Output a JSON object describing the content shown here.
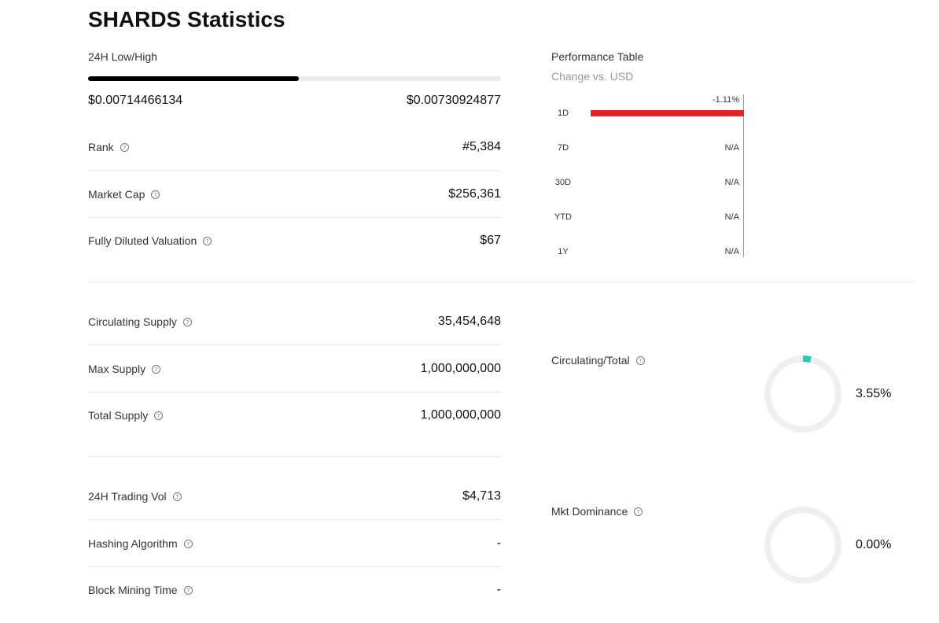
{
  "title": "SHARDS Statistics",
  "low_high": {
    "label": "24H Low/High",
    "low": "$0.00714466134",
    "high": "$0.00730924877",
    "fill_fraction": 0.51
  },
  "stats_group1": [
    {
      "label": "Rank",
      "value": "#5,384"
    },
    {
      "label": "Market Cap",
      "value": "$256,361"
    },
    {
      "label": "Fully Diluted Valuation",
      "value": "$67"
    }
  ],
  "stats_group2": [
    {
      "label": "Circulating Supply",
      "value": "35,454,648"
    },
    {
      "label": "Max Supply",
      "value": "1,000,000,000"
    },
    {
      "label": "Total Supply",
      "value": "1,000,000,000"
    }
  ],
  "stats_group3": [
    {
      "label": "24H Trading Vol",
      "value": "$4,713"
    },
    {
      "label": "Hashing Algorithm",
      "value": "-"
    },
    {
      "label": "Block Mining Time",
      "value": "-"
    }
  ],
  "performance": {
    "title": "Performance Table",
    "subtitle": "Change vs. USD",
    "rows": [
      {
        "period": "1D",
        "value": "-1.11%",
        "change": -1.11
      },
      {
        "period": "7D",
        "value": "N/A",
        "change": null
      },
      {
        "period": "30D",
        "value": "N/A",
        "change": null
      },
      {
        "period": "YTD",
        "value": "N/A",
        "change": null
      },
      {
        "period": "1Y",
        "value": "N/A",
        "change": null
      }
    ],
    "negative_color": "#e8202a"
  },
  "circulating_total": {
    "label": "Circulating/Total",
    "value": "3.55%",
    "fraction": 0.0355,
    "color": "#1fcfb3"
  },
  "mkt_dominance": {
    "label": "Mkt Dominance",
    "value": "0.00%",
    "fraction": 0.0,
    "color": "#1fcfb3"
  }
}
